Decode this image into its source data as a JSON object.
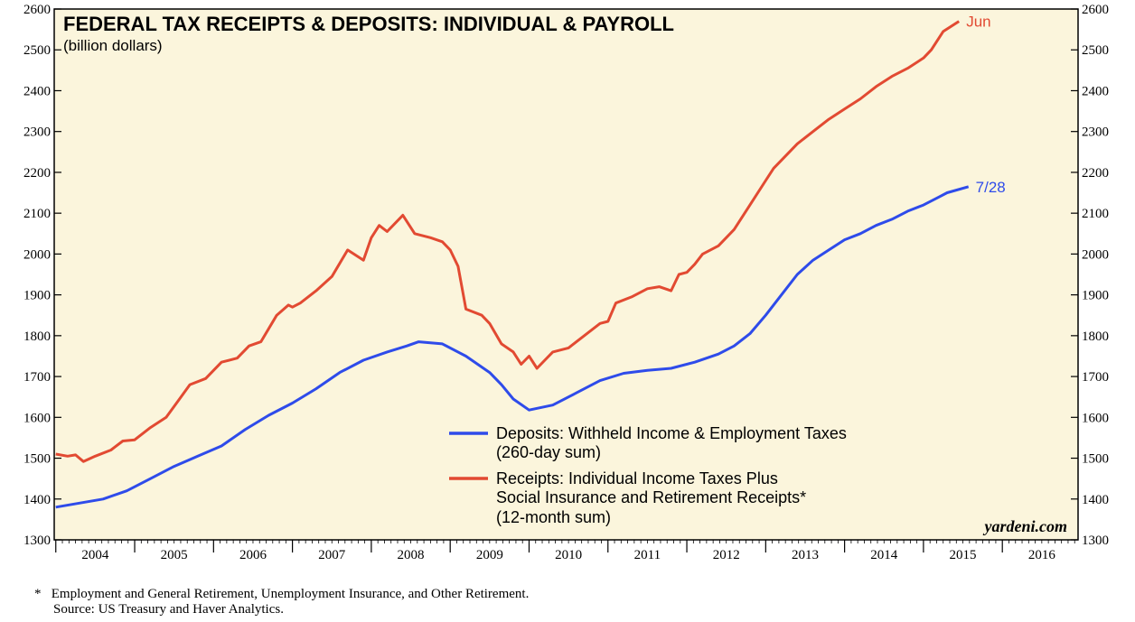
{
  "chart_data": {
    "type": "line",
    "title": "FEDERAL TAX RECEIPTS & DEPOSITS: INDIVIDUAL & PAYROLL",
    "subtitle": "(billion dollars)",
    "ylim": [
      1300,
      2600
    ],
    "y_ticks": [
      1300,
      1400,
      1500,
      1600,
      1700,
      1800,
      1900,
      2000,
      2100,
      2200,
      2300,
      2400,
      2500,
      2600
    ],
    "xlim": [
      2003.98,
      2016.96
    ],
    "x_tick_labels": [
      "2004",
      "2005",
      "2006",
      "2007",
      "2008",
      "2009",
      "2010",
      "2011",
      "2012",
      "2013",
      "2014",
      "2015",
      "2016"
    ],
    "brand": "yardeni.com",
    "background_color": "#FBF5DC",
    "series": [
      {
        "name": "Deposits: Withheld Income & Employment Taxes",
        "name_line2": "(260-day sum)",
        "color": "#2E4BEA",
        "end_label": "7/28",
        "x": [
          2004.0,
          2004.3,
          2004.6,
          2004.9,
          2005.2,
          2005.5,
          2005.8,
          2006.1,
          2006.4,
          2006.7,
          2007.0,
          2007.3,
          2007.6,
          2007.9,
          2008.2,
          2008.45,
          2008.6,
          2008.9,
          2009.2,
          2009.5,
          2009.65,
          2009.8,
          2010.0,
          2010.3,
          2010.6,
          2010.9,
          2011.2,
          2011.5,
          2011.8,
          2012.1,
          2012.4,
          2012.6,
          2012.8,
          2013.0,
          2013.2,
          2013.4,
          2013.6,
          2013.8,
          2014.0,
          2014.2,
          2014.4,
          2014.6,
          2014.8,
          2015.0,
          2015.2,
          2015.3,
          2015.57
        ],
        "values": [
          1380,
          1390,
          1400,
          1420,
          1450,
          1480,
          1505,
          1530,
          1570,
          1605,
          1635,
          1670,
          1710,
          1740,
          1760,
          1775,
          1785,
          1780,
          1750,
          1710,
          1680,
          1645,
          1618,
          1630,
          1660,
          1690,
          1708,
          1715,
          1720,
          1735,
          1755,
          1775,
          1805,
          1850,
          1900,
          1950,
          1985,
          2010,
          2035,
          2050,
          2070,
          2085,
          2105,
          2120,
          2140,
          2150,
          2165
        ]
      },
      {
        "name": "Receipts: Individual Income Taxes Plus",
        "name_line2": "Social Insurance and Retirement Receipts*",
        "name_line3": "(12-month sum)",
        "color": "#E24A32",
        "end_label": "Jun",
        "x": [
          2004.0,
          2004.15,
          2004.25,
          2004.35,
          2004.5,
          2004.7,
          2004.85,
          2005.0,
          2005.2,
          2005.4,
          2005.55,
          2005.7,
          2005.9,
          2006.1,
          2006.3,
          2006.45,
          2006.6,
          2006.8,
          2006.95,
          2007.0,
          2007.1,
          2007.3,
          2007.5,
          2007.7,
          2007.9,
          2008.0,
          2008.1,
          2008.2,
          2008.4,
          2008.55,
          2008.75,
          2008.9,
          2009.0,
          2009.1,
          2009.2,
          2009.4,
          2009.5,
          2009.65,
          2009.8,
          2009.9,
          2010.0,
          2010.1,
          2010.2,
          2010.3,
          2010.5,
          2010.7,
          2010.9,
          2011.0,
          2011.1,
          2011.3,
          2011.5,
          2011.65,
          2011.8,
          2011.9,
          2012.0,
          2012.1,
          2012.2,
          2012.4,
          2012.6,
          2012.8,
          2013.0,
          2013.1,
          2013.2,
          2013.4,
          2013.6,
          2013.8,
          2014.0,
          2014.2,
          2014.4,
          2014.6,
          2014.8,
          2015.0,
          2015.1,
          2015.25,
          2015.45
        ],
        "values": [
          1510,
          1505,
          1508,
          1492,
          1505,
          1520,
          1542,
          1545,
          1575,
          1600,
          1640,
          1680,
          1695,
          1735,
          1745,
          1775,
          1785,
          1850,
          1875,
          1870,
          1880,
          1910,
          1945,
          2010,
          1985,
          2040,
          2070,
          2055,
          2095,
          2050,
          2040,
          2030,
          2010,
          1970,
          1865,
          1850,
          1830,
          1780,
          1760,
          1730,
          1750,
          1720,
          1740,
          1760,
          1770,
          1800,
          1830,
          1835,
          1880,
          1895,
          1915,
          1920,
          1910,
          1950,
          1955,
          1975,
          2000,
          2020,
          2060,
          2120,
          2180,
          2210,
          2230,
          2270,
          2300,
          2330,
          2355,
          2380,
          2410,
          2435,
          2455,
          2480,
          2500,
          2545,
          2570
        ]
      }
    ],
    "footnote_line1": "Employment and General Retirement, Unemployment Insurance, and Other Retirement.",
    "footnote_mark": "*",
    "footnote_line2": "Source: US Treasury and Haver Analytics."
  }
}
